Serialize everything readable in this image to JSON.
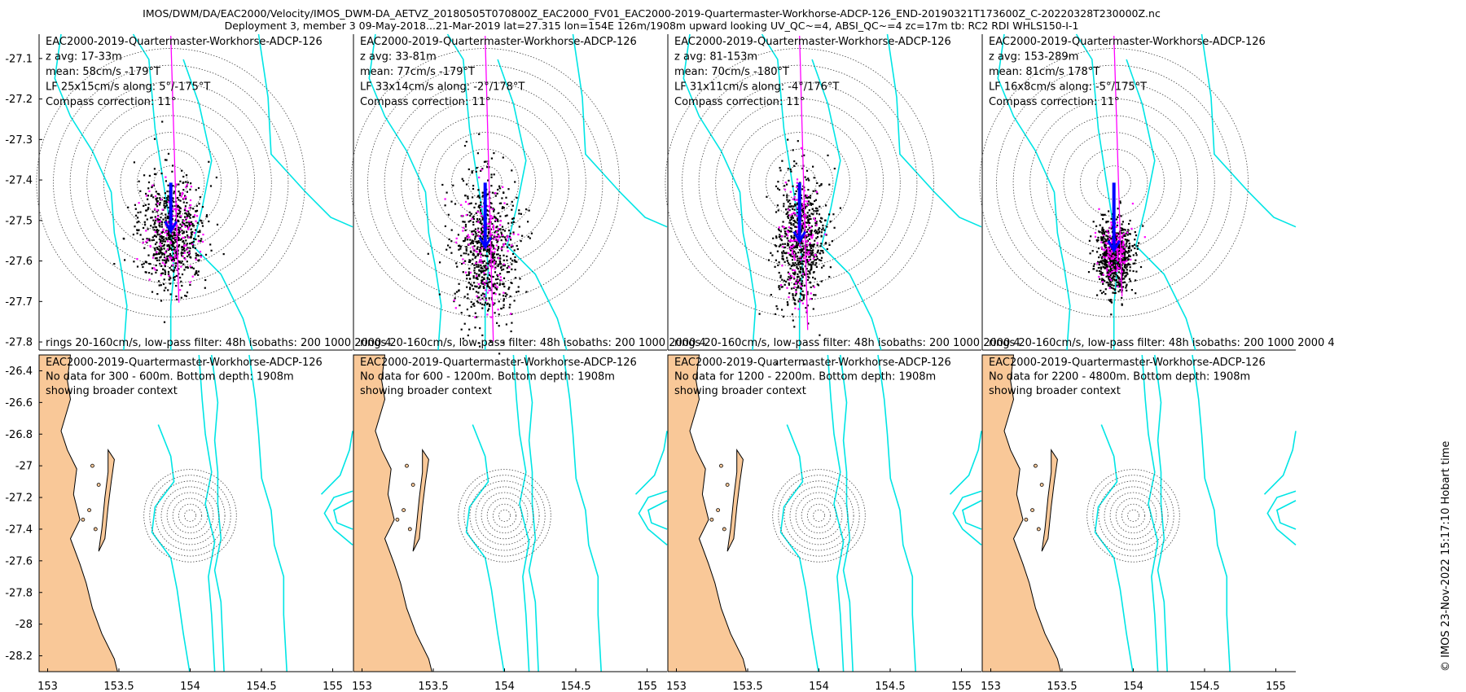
{
  "figure": {
    "title_line1": "IMOS/DWM/DA/EAC2000/Velocity/IMOS_DWM-DA_AETVZ_20180505T070800Z_EAC2000_FV01_EAC2000-2019-Quartermaster-Workhorse-ADCP-126_END-20190321T173600Z_C-20220328T230000Z.nc",
    "title_line2": "Deployment 3, member 3 09-May-2018...21-Mar-2019 lat=27.315 lon=154E 126m/1908m upward looking UV_QC~=4, ABSI_QC~=4 zc=17m tb: RC2 RDI WHLS150-I-1",
    "credit": "© IMOS 23-Nov-2022 15:17:10 Hobart time"
  },
  "colors": {
    "isobath": "#00e5e5",
    "scatter": "#000000",
    "lowpass": "#ff00ff",
    "mean_arrow": "#0000ff",
    "land": "#f9c898",
    "rings": "#444444"
  },
  "chart_data": [
    {
      "type": "scatter",
      "title": "",
      "lines": [
        "EAC2000-2019-Quartermaster-Workhorse-ADCP-126",
        "z avg: 17-33m",
        "mean: 58cm/s -179°T",
        "LF 25x15cm/s along: 5°/-175°T",
        "Compass correction: 11°"
      ],
      "footer": "rings 20-160cm/s, low-pass filter: 48h isobaths: 200 1000 2000 4",
      "yticks": [
        "-27.1",
        "-27.2",
        "-27.3",
        "-27.4",
        "-27.5",
        "-27.6",
        "-27.7",
        "-27.8"
      ],
      "ylim": [
        -27.82,
        -27.04
      ],
      "mean_speed_cms": 58,
      "mean_dir_deg": -179,
      "spread_x_cms": 15,
      "spread_y_cms": 25,
      "rings_cms": [
        20,
        40,
        60,
        80,
        100,
        120,
        140,
        160
      ]
    },
    {
      "type": "scatter",
      "title": "",
      "lines": [
        "EAC2000-2019-Quartermaster-Workhorse-ADCP-126",
        "z avg: 33-81m",
        "mean: 77cm/s -179°T",
        "LF 33x14cm/s along: -2°/178°T",
        "Compass correction: 11°"
      ],
      "footer": "rings 20-160cm/s, low-pass filter: 48h isobaths: 200 1000 2000 4",
      "mean_speed_cms": 77,
      "mean_dir_deg": -179,
      "spread_x_cms": 14,
      "spread_y_cms": 33,
      "rings_cms": [
        20,
        40,
        60,
        80,
        100,
        120,
        140,
        160
      ]
    },
    {
      "type": "scatter",
      "title": "",
      "lines": [
        "EAC2000-2019-Quartermaster-Workhorse-ADCP-126",
        "z avg: 81-153m",
        "mean: 70cm/s -180°T",
        "LF 31x11cm/s along: -4°/176°T",
        "Compass correction: 11°"
      ],
      "footer": "rings 20-160cm/s, low-pass filter: 48h isobaths: 200 1000 2000 4",
      "mean_speed_cms": 70,
      "mean_dir_deg": -180,
      "spread_x_cms": 11,
      "spread_y_cms": 31,
      "rings_cms": [
        20,
        40,
        60,
        80,
        100,
        120,
        140,
        160
      ]
    },
    {
      "type": "scatter",
      "title": "",
      "lines": [
        "EAC2000-2019-Quartermaster-Workhorse-ADCP-126",
        "z avg: 153-289m",
        "mean: 81cm/s 178°T",
        "LF 16x8cm/s along: -5°/175°T",
        "Compass correction: 11°"
      ],
      "footer": "rings 20-160cm/s, low-pass filter: 48h isobaths: 200 1000 2000 4",
      "mean_speed_cms": 81,
      "mean_dir_deg": 178,
      "spread_x_cms": 8,
      "spread_y_cms": 16,
      "rings_cms": [
        20,
        40,
        60,
        80,
        100,
        120,
        140,
        160
      ]
    },
    {
      "type": "map",
      "title": "",
      "lines": [
        "EAC2000-2019-Quartermaster-Workhorse-ADCP-126",
        "No data for 300 - 600m. Bottom depth: 1908m",
        "showing broader context"
      ],
      "yticks": [
        "-26.4",
        "-26.6",
        "-26.8",
        "-27",
        "-27.2",
        "-27.4",
        "-27.6",
        "-27.8",
        "-28",
        "-28.2"
      ],
      "xticks": [
        "153",
        "153.5",
        "154",
        "154.5",
        "155"
      ],
      "xlim": [
        152.94,
        155.14
      ],
      "ylim": [
        -28.3,
        -26.3
      ],
      "site": {
        "lon": 154.0,
        "lat": -27.315
      }
    },
    {
      "type": "map",
      "title": "",
      "lines": [
        "EAC2000-2019-Quartermaster-Workhorse-ADCP-126",
        "No data for 600 - 1200m. Bottom depth: 1908m",
        "showing broader context"
      ],
      "xticks": [
        "153",
        "153.5",
        "154",
        "154.5",
        "155"
      ]
    },
    {
      "type": "map",
      "title": "",
      "lines": [
        "EAC2000-2019-Quartermaster-Workhorse-ADCP-126",
        "No data for 1200 - 2200m. Bottom depth: 1908m",
        "showing broader context"
      ],
      "xticks": [
        "153",
        "153.5",
        "154",
        "154.5",
        "155"
      ]
    },
    {
      "type": "map",
      "title": "",
      "lines": [
        "EAC2000-2019-Quartermaster-Workhorse-ADCP-126",
        "No data for 2200 - 4800m. Bottom depth: 1908m",
        "showing broader context"
      ],
      "xticks": [
        "153",
        "153.5",
        "154",
        "154.5",
        "155"
      ]
    }
  ]
}
